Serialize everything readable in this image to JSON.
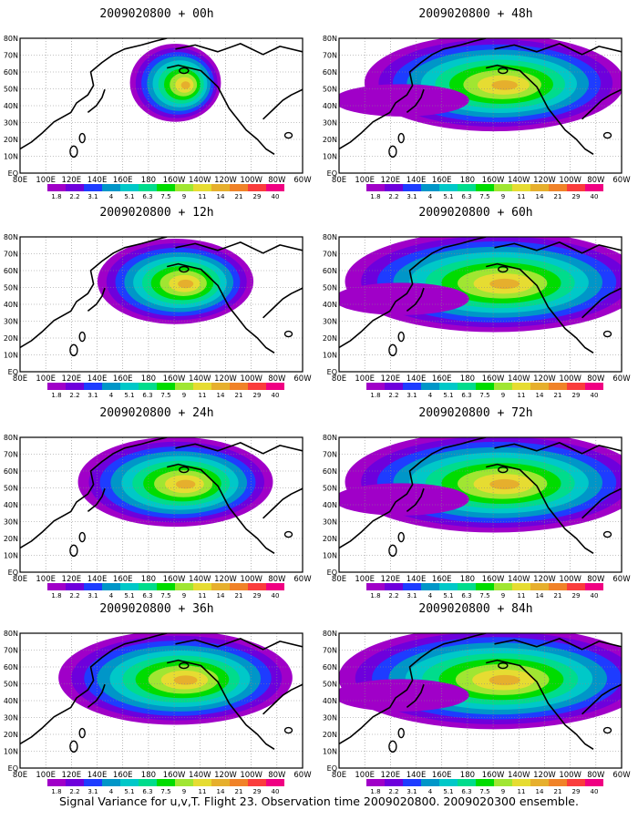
{
  "panels": [
    {
      "title": "2009020800 + 00h",
      "spread": 0.35,
      "level": 0.55
    },
    {
      "title": "2009020800 + 48h",
      "spread": 1.0,
      "level": 0.55
    },
    {
      "title": "2009020800 + 12h",
      "spread": 0.6,
      "level": 0.6
    },
    {
      "title": "2009020800 + 60h",
      "spread": 1.15,
      "level": 0.5
    },
    {
      "title": "2009020800 + 24h",
      "spread": 0.75,
      "level": 0.6
    },
    {
      "title": "2009020800 + 72h",
      "spread": 1.15,
      "level": 0.55
    },
    {
      "title": "2009020800 + 36h",
      "spread": 0.9,
      "level": 0.58
    },
    {
      "title": "2009020800 + 84h",
      "spread": 1.2,
      "level": 0.6
    }
  ],
  "lat_labels": [
    "80N",
    "70N",
    "60N",
    "50N",
    "40N",
    "30N",
    "20N",
    "10N",
    "EQ"
  ],
  "lon_labels": [
    "80E",
    "100E",
    "120E",
    "140E",
    "160E",
    "180",
    "160W",
    "140W",
    "120W",
    "100W",
    "80W",
    "60W"
  ],
  "colorbar": {
    "ticks": [
      "1.8",
      "2.2",
      "3.1",
      "4",
      "5.1",
      "6.3",
      "7.5",
      "9",
      "11",
      "14",
      "21",
      "29",
      "40"
    ],
    "colors": [
      "#a000c8",
      "#6e00dc",
      "#1e3cff",
      "#0096c8",
      "#00c8c8",
      "#00dc8c",
      "#00dc00",
      "#a0e632",
      "#e6dc32",
      "#e6af2d",
      "#f08228",
      "#fa3c3c",
      "#f00082"
    ]
  },
  "caption": "Signal Variance for u,v,T. Flight 23. Observation time 2009020800. 2009020300 ensemble."
}
